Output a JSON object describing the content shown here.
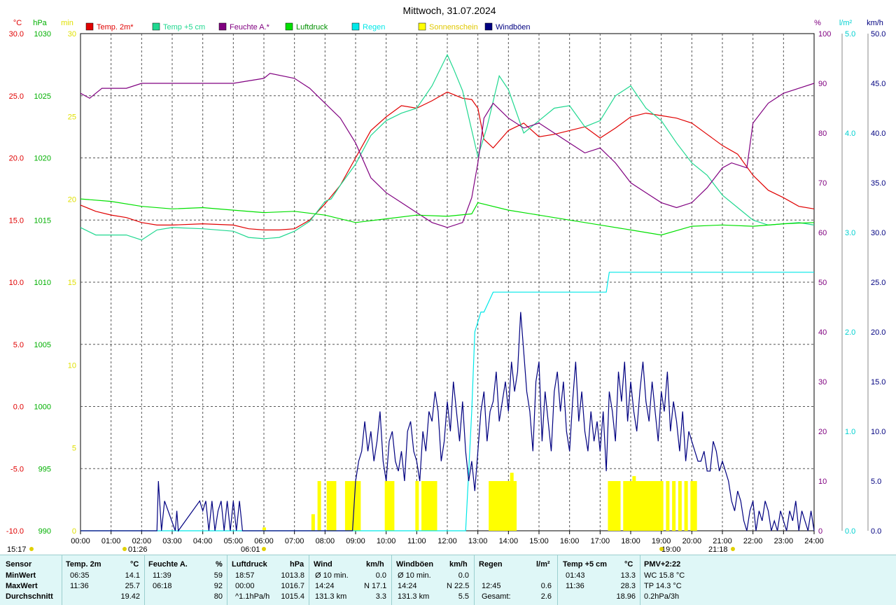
{
  "chart_data": {
    "type": "line",
    "title": "Mittwoch, 31.07.2024",
    "x_ticks": [
      "00:00",
      "01:00",
      "02:00",
      "03:00",
      "04:00",
      "05:00",
      "06:00",
      "07:00",
      "08:00",
      "09:00",
      "10:00",
      "11:00",
      "12:00",
      "13:00",
      "14:00",
      "15:00",
      "16:00",
      "17:00",
      "18:00",
      "19:00",
      "20:00",
      "21:00",
      "22:00",
      "23:00",
      "24:00"
    ],
    "xlim": [
      0,
      24
    ],
    "grid": true,
    "legend_position": "top",
    "axes": {
      "temp": {
        "unit": "°C",
        "color": "#e00000",
        "ylim": [
          -10,
          30
        ],
        "ticks": [
          "30.0",
          "25.0",
          "20.0",
          "15.0",
          "10.0",
          "5.0",
          "0.0",
          "-5.0",
          "-10.0"
        ]
      },
      "pressure": {
        "unit": "hPa",
        "color": "#00b000",
        "ylim": [
          990,
          1030
        ],
        "ticks": [
          "1030",
          "1025",
          "1020",
          "1015",
          "1010",
          "1005",
          "1000",
          "995",
          "990"
        ]
      },
      "sunshine": {
        "unit": "min",
        "color": "#e0e000",
        "ylim": [
          0,
          30
        ],
        "ticks": [
          "30",
          "25",
          "20",
          "15",
          "10",
          "5",
          "0"
        ]
      },
      "humidity": {
        "unit": "%",
        "color": "#800080",
        "ylim": [
          0,
          100
        ],
        "ticks": [
          "100",
          "90",
          "80",
          "70",
          "60",
          "50",
          "40",
          "30",
          "20",
          "10",
          "0"
        ]
      },
      "rain": {
        "unit": "l/m²",
        "color": "#00d0d0",
        "ylim": [
          0,
          5
        ],
        "ticks": [
          "5.0",
          "4.0",
          "3.0",
          "2.0",
          "1.0",
          "0.0"
        ]
      },
      "wind": {
        "unit": "km/h",
        "color": "#000080",
        "ylim": [
          0,
          50
        ],
        "ticks": [
          "50.0",
          "45.0",
          "40.0",
          "35.0",
          "30.0",
          "25.0",
          "20.0",
          "15.0",
          "10.0",
          "5.0",
          "0.0"
        ]
      }
    },
    "series": [
      {
        "name": "Temp. 2m*",
        "color": "#e00000",
        "axis": "temp",
        "x": [
          0,
          0.5,
          1,
          1.5,
          2,
          2.5,
          3,
          4,
          5,
          5.5,
          6,
          6.5,
          7,
          7.5,
          8,
          8.5,
          9,
          9.5,
          10,
          10.5,
          11,
          11.5,
          12,
          12.5,
          12.8,
          13,
          13.2,
          13.5,
          14,
          14.5,
          15,
          15.5,
          16,
          16.5,
          17,
          17.5,
          18,
          18.5,
          19,
          19.5,
          20,
          20.5,
          21,
          21.5,
          22,
          22.5,
          23,
          23.5,
          24
        ],
        "y": [
          16.2,
          15.7,
          15.4,
          15.2,
          14.8,
          14.6,
          14.6,
          14.7,
          14.6,
          14.3,
          14.2,
          14.2,
          14.3,
          15,
          16.3,
          17.8,
          20.0,
          22.2,
          23.3,
          24.2,
          24.0,
          24.6,
          25.3,
          24.8,
          24.7,
          24.0,
          21.5,
          20.8,
          22.2,
          22.8,
          21.7,
          21.9,
          22.2,
          22.5,
          21.6,
          22.4,
          23.3,
          23.6,
          23.4,
          23.2,
          22.8,
          21.9,
          21.0,
          20.3,
          18.6,
          17.4,
          16.8,
          16.1,
          15.9
        ]
      },
      {
        "name": "Temp +5 cm",
        "color": "#20d890",
        "axis": "temp",
        "x": [
          0,
          0.5,
          1,
          1.5,
          2,
          2.5,
          3,
          4,
          5,
          5.5,
          6,
          6.5,
          7,
          7.5,
          8,
          8.2,
          8.5,
          9,
          9.5,
          10,
          10.5,
          11,
          11.5,
          12,
          12.2,
          12.5,
          13,
          13.3,
          13.7,
          14,
          14.5,
          15,
          15.5,
          16,
          16.5,
          17,
          17.5,
          18,
          18.5,
          19,
          19.5,
          20,
          20.5,
          21,
          21.5,
          22,
          22.5,
          23,
          23.5,
          24
        ],
        "y": [
          14.4,
          13.8,
          13.8,
          13.8,
          13.4,
          14.2,
          14.4,
          14.3,
          14.1,
          13.6,
          13.5,
          13.6,
          14.1,
          14.9,
          16.5,
          16.7,
          17.8,
          19.5,
          21.8,
          23.0,
          23.6,
          24.0,
          25.8,
          28.3,
          27.2,
          25.4,
          20.1,
          22.5,
          26.6,
          25.5,
          22.0,
          23.0,
          24.0,
          24.2,
          22.5,
          23.0,
          25.0,
          25.8,
          24.0,
          23.0,
          21.2,
          19.6,
          18.6,
          17.0,
          16.0,
          15.0,
          14.6,
          14.7,
          14.8,
          14.6
        ]
      },
      {
        "name": "Feuchte A.*",
        "color": "#800080",
        "axis": "humidity",
        "x": [
          0,
          0.3,
          0.7,
          1,
          1.5,
          2,
          2.5,
          3,
          4,
          5,
          6,
          6.2,
          7,
          7.5,
          8,
          8.5,
          9,
          9.5,
          10,
          10.5,
          11,
          11.5,
          12,
          12.5,
          12.8,
          13,
          13.2,
          13.5,
          14,
          14.5,
          15,
          15.5,
          16,
          16.5,
          17,
          17.5,
          18,
          18.5,
          19,
          19.5,
          20,
          20.5,
          21,
          21.3,
          21.8,
          22,
          22.5,
          23,
          23.5,
          24
        ],
        "y": [
          88,
          87,
          89,
          89,
          89,
          90,
          90,
          90,
          90,
          90,
          91,
          92,
          91,
          89,
          86,
          83,
          78,
          71,
          68,
          66,
          64,
          62,
          61,
          62,
          67,
          74,
          83,
          86,
          83,
          81,
          82,
          80,
          78,
          76,
          77,
          74,
          70,
          68,
          66,
          65,
          66,
          69,
          73,
          74,
          73,
          82,
          86,
          88,
          89,
          90
        ]
      },
      {
        "name": "Luftdruck",
        "color": "#00e000",
        "axis": "pressure",
        "x": [
          0,
          1,
          2,
          3,
          4,
          5,
          6,
          7,
          8,
          9,
          10,
          11,
          12,
          12.8,
          13,
          14,
          15,
          16,
          17,
          18,
          19,
          20,
          21,
          22,
          23,
          24
        ],
        "y": [
          1016.7,
          1016.5,
          1016.1,
          1015.9,
          1016.0,
          1015.8,
          1015.6,
          1015.7,
          1015.4,
          1014.8,
          1015.1,
          1015.4,
          1015.3,
          1015.5,
          1016.4,
          1015.8,
          1015.4,
          1015.0,
          1014.6,
          1014.2,
          1013.8,
          1014.5,
          1014.6,
          1014.5,
          1014.7,
          1014.8
        ]
      },
      {
        "name": "Regen",
        "color": "#00e8e8",
        "axis": "rain",
        "x": [
          0,
          12.6,
          12.65,
          12.7,
          12.8,
          12.9,
          13.1,
          13.2,
          13.5,
          14,
          15,
          16,
          17,
          17.2,
          17.3,
          18,
          19,
          20,
          21,
          22,
          23,
          24
        ],
        "y": [
          0,
          0,
          0.3,
          0.6,
          1.2,
          2.0,
          2.2,
          2.2,
          2.4,
          2.4,
          2.4,
          2.4,
          2.4,
          2.4,
          2.6,
          2.6,
          2.6,
          2.6,
          2.6,
          2.6,
          2.6,
          2.6
        ]
      },
      {
        "name": "Sonnenschein",
        "color": "#ffff00",
        "axis": "sunshine",
        "render": "bars",
        "x": [
          6.0,
          7.6,
          7.8,
          8.1,
          8.2,
          8.3,
          8.7,
          8.8,
          8.9,
          9.0,
          9.1,
          10.0,
          10.1,
          10.2,
          11.0,
          11.2,
          11.3,
          11.4,
          11.5,
          11.6,
          13.4,
          13.5,
          13.6,
          13.7,
          13.8,
          13.9,
          14.0,
          14.1,
          14.2,
          17.3,
          17.4,
          17.5,
          17.6,
          17.8,
          17.9,
          18.0,
          18.1,
          18.2,
          18.3,
          18.4,
          18.5,
          18.6,
          18.7,
          18.8,
          18.9,
          19.0,
          19.2,
          19.4,
          19.6,
          19.8,
          20.0,
          20.1
        ],
        "y": [
          0.2,
          1.0,
          3.0,
          3.0,
          3.0,
          3.0,
          3.0,
          3.0,
          3.0,
          3.0,
          3.0,
          3.0,
          3.0,
          3.0,
          3.0,
          3.0,
          3.0,
          3.0,
          3.0,
          3.0,
          3.0,
          3.0,
          3.0,
          3.0,
          3.0,
          3.0,
          3.0,
          3.5,
          3.0,
          3.0,
          3.0,
          3.0,
          3.0,
          3.0,
          3.0,
          3.0,
          3.3,
          3.0,
          3.0,
          3.0,
          3.0,
          3.0,
          3.0,
          3.0,
          3.0,
          3.0,
          3.0,
          3.0,
          3.0,
          3.0,
          3.0,
          3.0
        ]
      },
      {
        "name": "Windböen",
        "color": "#000080",
        "axis": "wind",
        "x": [
          0,
          2.5,
          2.55,
          2.65,
          2.75,
          3.1,
          3.15,
          3.2,
          3.9,
          4.0,
          4.1,
          4.2,
          4.3,
          4.4,
          4.5,
          4.6,
          4.7,
          4.8,
          4.9,
          5.0,
          5.1,
          5.2,
          5.3,
          5.35,
          8.9,
          9.0,
          9.1,
          9.2,
          9.3,
          9.4,
          9.5,
          9.6,
          9.7,
          9.8,
          9.9,
          10.0,
          10.1,
          10.2,
          10.3,
          10.4,
          10.5,
          10.6,
          10.7,
          10.8,
          10.9,
          11.0,
          11.1,
          11.2,
          11.3,
          11.4,
          11.5,
          11.6,
          11.7,
          11.8,
          11.9,
          12.0,
          12.1,
          12.2,
          12.3,
          12.4,
          12.5,
          12.6,
          12.7,
          12.8,
          12.9,
          13.0,
          13.1,
          13.2,
          13.3,
          13.4,
          13.5,
          13.6,
          13.7,
          13.8,
          13.9,
          14.0,
          14.1,
          14.2,
          14.3,
          14.4,
          14.5,
          14.6,
          14.7,
          14.8,
          14.9,
          15.0,
          15.1,
          15.2,
          15.3,
          15.4,
          15.5,
          15.6,
          15.7,
          15.8,
          15.9,
          16.0,
          16.1,
          16.2,
          16.3,
          16.4,
          16.5,
          16.6,
          16.7,
          16.8,
          16.9,
          17.0,
          17.1,
          17.2,
          17.3,
          17.4,
          17.5,
          17.6,
          17.7,
          17.8,
          17.9,
          18.0,
          18.1,
          18.2,
          18.3,
          18.4,
          18.5,
          18.6,
          18.7,
          18.8,
          18.9,
          19.0,
          19.1,
          19.2,
          19.3,
          19.4,
          19.5,
          19.6,
          19.7,
          19.8,
          19.9,
          20.0,
          20.1,
          20.2,
          20.3,
          20.4,
          20.5,
          20.6,
          20.7,
          20.8,
          20.9,
          21.0,
          21.1,
          21.2,
          21.3,
          21.4,
          21.5,
          21.6,
          21.7,
          21.8,
          21.9,
          22.0,
          22.1,
          22.2,
          22.3,
          22.4,
          22.5,
          22.6,
          22.7,
          22.8,
          22.9,
          23.0,
          23.1,
          23.2,
          23.3,
          23.4,
          23.5,
          23.6,
          23.7,
          23.8,
          23.9,
          24.0
        ],
        "y": [
          0,
          0,
          5,
          0,
          3,
          0,
          2,
          0,
          3,
          2,
          3,
          0,
          3,
          0,
          2,
          3,
          0,
          3,
          0,
          3,
          0,
          3,
          0,
          0,
          0,
          5,
          7,
          8,
          11,
          8,
          10,
          7,
          9,
          12,
          7,
          5,
          9,
          10,
          7,
          6,
          8,
          5,
          10,
          11,
          8,
          7,
          5,
          10,
          8,
          12,
          11,
          14,
          12,
          7,
          9,
          13,
          10,
          15,
          12,
          9,
          13,
          8,
          5,
          7,
          4,
          8,
          12,
          14,
          9,
          12,
          13,
          16,
          11,
          13,
          15,
          12,
          17,
          14,
          16,
          22,
          18,
          14,
          12,
          8,
          15,
          17,
          9,
          14,
          11,
          8,
          14,
          16,
          12,
          15,
          10,
          8,
          13,
          17,
          11,
          14,
          10,
          8,
          12,
          9,
          11,
          8,
          12,
          6,
          14,
          12,
          9,
          16,
          13,
          17,
          11,
          15,
          12,
          10,
          14,
          17,
          13,
          11,
          15,
          12,
          9,
          14,
          12,
          16,
          10,
          13,
          11,
          8,
          12,
          7,
          10,
          9,
          8,
          7,
          7,
          8,
          6,
          6,
          9,
          8,
          6,
          7,
          6,
          5,
          3,
          2,
          4,
          3,
          1,
          0,
          2,
          3,
          0,
          2,
          1,
          3,
          2,
          0,
          1,
          0,
          2,
          1,
          0,
          2,
          1,
          3,
          0,
          2,
          1,
          0,
          2,
          0
        ],
        "note_peak": "Windböen max 22.5 km/h at 14:24"
      }
    ],
    "legend": [
      {
        "label": "Temp. 2m*",
        "color": "#e00000"
      },
      {
        "label": "Temp +5 cm",
        "color": "#20d890"
      },
      {
        "label": "Feuchte A.*",
        "color": "#800080"
      },
      {
        "label": "Luftdruck",
        "color": "#00e000"
      },
      {
        "label": "Regen",
        "color": "#00e8e8"
      },
      {
        "label": "Sonnenschein",
        "color": "#ffff00"
      },
      {
        "label": "Windböen",
        "color": "#000080"
      }
    ],
    "annotations": {
      "left_time": "15:17",
      "sunrise_mark": "01:26",
      "moonrise": "06:01",
      "sunset_mark": "19:00",
      "moonset": "21:18"
    }
  },
  "summary": {
    "headers": [
      "Sensor",
      "Temp. 2m",
      "°C",
      "Feuchte A.",
      "%",
      "Luftdruck",
      "hPa",
      "Wind",
      "km/h",
      "Windböen",
      "km/h",
      "Regen",
      "l/m²",
      "Temp +5 cm",
      "°C",
      "PMV+2:22"
    ],
    "rows": [
      {
        "label": "MinWert",
        "temp_time": "06:35",
        "temp_val": "14.1",
        "hum_time": "11:39",
        "hum_val": "59",
        "press_time": "18:57",
        "press_val": "1013.8",
        "wind_info": "Ø 10 min.",
        "wind_val": "0.0",
        "gust_info": "Ø 10 min.",
        "gust_val": "0.0",
        "rain_time": "",
        "rain_val": "",
        "t5_time": "01:43",
        "t5_val": "13.3",
        "pmv": "WC 15.8 °C"
      },
      {
        "label": "MaxWert",
        "temp_time": "11:36",
        "temp_val": "25.7",
        "hum_time": "06:18",
        "hum_val": "92",
        "press_time": "00:00",
        "press_val": "1016.7",
        "wind_info": "14:24",
        "wind_dir": "N 17.1",
        "wind_val": "",
        "gust_info": "14:24",
        "gust_dir": "N 22.5",
        "gust_val": "",
        "rain_time": "12:45",
        "rain_val": "0.6",
        "t5_time": "11:36",
        "t5_val": "28.3",
        "pmv": "TP 14.3 °C"
      },
      {
        "label": "Durchschnitt",
        "temp_time": "",
        "temp_val": "19.42",
        "hum_time": "",
        "hum_val": "80",
        "press_time": "^1.1hPa/h",
        "press_val": "1015.4",
        "wind_info": "131.3 km",
        "wind_val": "3.3",
        "gust_info": "131.3 km",
        "gust_val": "5.5",
        "rain_time": "Gesamt:",
        "rain_val": "2.6",
        "t5_time": "",
        "t5_val": "18.96",
        "pmv": "0.2hPa/3h"
      }
    ]
  }
}
